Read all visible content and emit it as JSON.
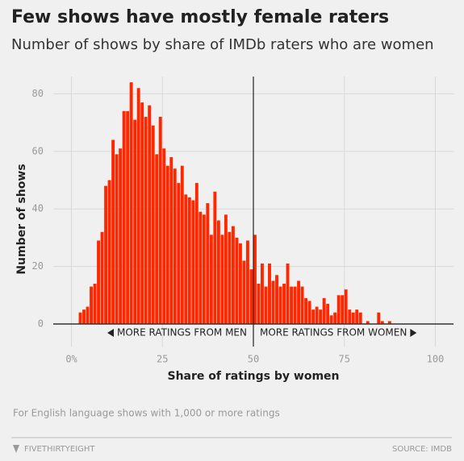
{
  "chart_data": {
    "type": "histogram",
    "title": "Few shows have mostly female raters",
    "subtitle": "Number of shows by share of IMDb raters who are women",
    "x_label": "Share of ratings by women",
    "y_label": "Number of shows",
    "bins": [
      2,
      3,
      4,
      5,
      6,
      7,
      8,
      9,
      10,
      11,
      12,
      13,
      14,
      15,
      16,
      17,
      18,
      19,
      20,
      21,
      22,
      23,
      24,
      25,
      26,
      27,
      28,
      29,
      30,
      31,
      32,
      33,
      34,
      35,
      36,
      37,
      38,
      39,
      40,
      41,
      42,
      43,
      44,
      45,
      46,
      47,
      48,
      49,
      50,
      51,
      52,
      53,
      54,
      55,
      56,
      57,
      58,
      59,
      60,
      61,
      62,
      63,
      64,
      65,
      66,
      67,
      68,
      69,
      70,
      71,
      72,
      73,
      74,
      75,
      76,
      77,
      78,
      79,
      80,
      81,
      82,
      83,
      84,
      85,
      86,
      87,
      88
    ],
    "values": [
      4,
      5,
      6,
      13,
      14,
      29,
      32,
      48,
      50,
      64,
      59,
      61,
      74,
      74,
      84,
      71,
      82,
      77,
      72,
      76,
      69,
      59,
      72,
      61,
      55,
      58,
      54,
      49,
      55,
      45,
      44,
      43,
      49,
      39,
      38,
      42,
      31,
      46,
      36,
      31,
      38,
      32,
      34,
      30,
      28,
      22,
      29,
      19,
      31,
      14,
      21,
      13,
      21,
      15,
      17,
      13,
      14,
      21,
      13,
      13,
      15,
      13,
      9,
      8,
      5,
      6,
      5,
      9,
      7,
      3,
      4,
      10,
      10,
      12,
      5,
      4,
      5,
      4,
      0,
      1,
      0,
      0,
      4,
      1,
      0,
      1
    ],
    "color": "#ff2700",
    "xlim": [
      -5,
      105
    ],
    "xticks": [
      {
        "value": 0,
        "label": "0%"
      },
      25,
      50,
      75,
      100
    ],
    "ylim": [
      0,
      86
    ],
    "yticks": [
      0,
      20,
      40,
      60,
      80
    ],
    "grid": true,
    "reference_line": 50,
    "annotations": {
      "left": "MORE RATINGS FROM MEN",
      "right": "MORE RATINGS FROM WOMEN"
    },
    "note": "For English language shows with 1,000 or more ratings",
    "brand": "FIVETHIRTYEIGHT",
    "source": "SOURCE: IMDB"
  }
}
